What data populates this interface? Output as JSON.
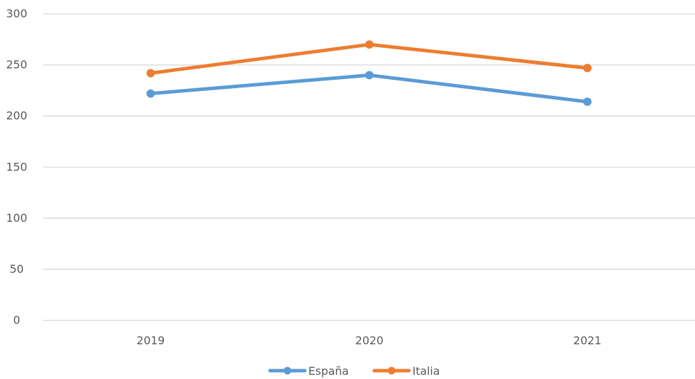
{
  "chart_data": {
    "type": "line",
    "title": "",
    "xlabel": "",
    "ylabel": "",
    "categories": [
      "2019",
      "2020",
      "2021"
    ],
    "ylim": [
      0,
      300
    ],
    "yticks": [
      0,
      50,
      100,
      150,
      200,
      250,
      300
    ],
    "grid": true,
    "legend_position": "bottom",
    "series": [
      {
        "name": "España",
        "color": "#5B9BD5",
        "values": [
          222,
          240,
          214
        ]
      },
      {
        "name": "Italia",
        "color": "#ED7D31",
        "values": [
          242,
          270,
          247
        ]
      }
    ]
  }
}
